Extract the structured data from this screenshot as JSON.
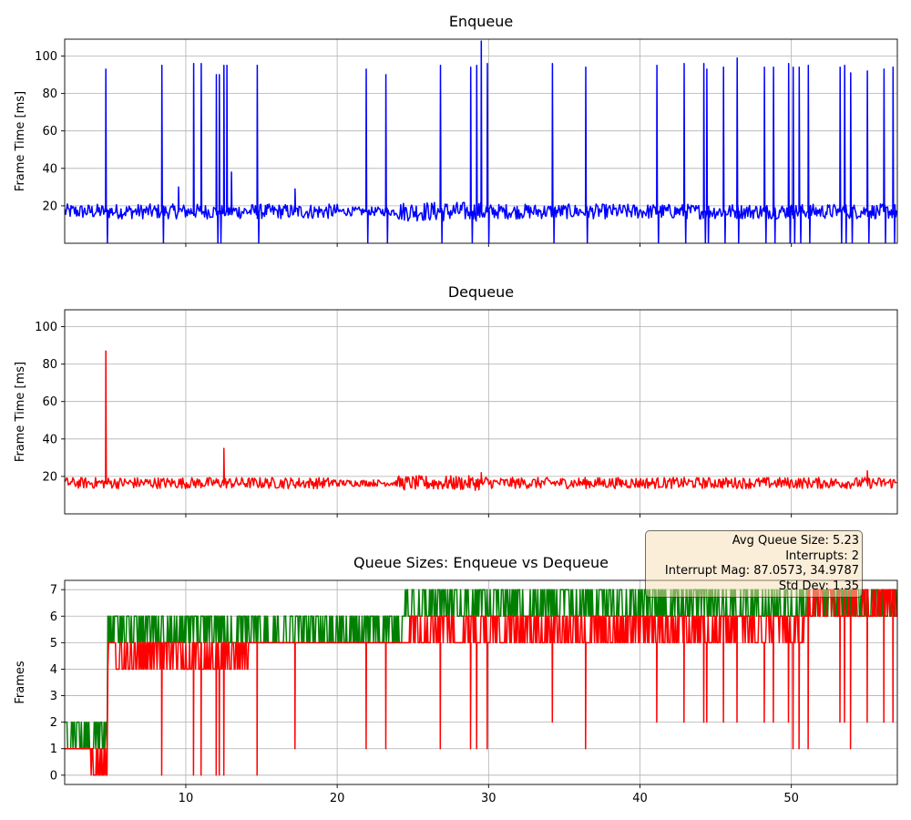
{
  "chart_data": [
    {
      "type": "line",
      "title": "Enqueue",
      "xlabel": "",
      "ylabel": "Frame Time [ms]",
      "xlim": [
        2,
        57
      ],
      "ylim": [
        0,
        109
      ],
      "xticks": [
        10,
        20,
        30,
        40,
        50
      ],
      "yticks": [
        20,
        40,
        60,
        80,
        100
      ],
      "grid": true,
      "series": [
        {
          "color": "#0000ff",
          "baseline": 17,
          "noise_amplitude": 4,
          "spikes": [
            [
              4.7,
              93
            ],
            [
              8.4,
              95
            ],
            [
              9.5,
              30
            ],
            [
              10.5,
              96
            ],
            [
              11.0,
              96
            ],
            [
              12.0,
              90
            ],
            [
              12.2,
              90
            ],
            [
              12.5,
              95
            ],
            [
              12.7,
              95
            ],
            [
              13.0,
              38
            ],
            [
              14.7,
              95
            ],
            [
              17.2,
              29
            ],
            [
              21.9,
              93
            ],
            [
              23.2,
              90
            ],
            [
              26.8,
              95
            ],
            [
              28.8,
              94
            ],
            [
              29.2,
              95
            ],
            [
              29.5,
              108
            ],
            [
              29.9,
              96
            ],
            [
              34.2,
              96
            ],
            [
              36.4,
              94
            ],
            [
              41.1,
              95
            ],
            [
              42.9,
              96
            ],
            [
              44.2,
              96
            ],
            [
              44.4,
              93
            ],
            [
              45.5,
              94
            ],
            [
              46.4,
              99
            ],
            [
              48.2,
              94
            ],
            [
              48.8,
              94
            ],
            [
              49.8,
              96
            ],
            [
              50.1,
              94
            ],
            [
              50.5,
              94
            ],
            [
              51.1,
              95
            ],
            [
              53.2,
              94
            ],
            [
              53.5,
              95
            ],
            [
              53.9,
              91
            ],
            [
              55.0,
              92
            ],
            [
              56.1,
              93
            ],
            [
              56.7,
              94
            ]
          ],
          "drops": [
            4.7,
            8.4,
            12.0,
            12.2,
            14.7,
            21.9,
            23.2,
            26.8,
            28.8,
            29.9,
            34.2,
            36.4,
            41.1,
            42.9,
            44.2,
            44.4,
            45.5,
            46.4,
            48.2,
            48.8,
            49.8,
            50.1,
            50.5,
            51.1,
            53.2,
            53.5,
            53.9,
            55.0,
            56.1,
            56.7
          ]
        }
      ]
    },
    {
      "type": "line",
      "title": "Dequeue",
      "xlabel": "",
      "ylabel": "Frame Time [ms]",
      "xlim": [
        2,
        57
      ],
      "ylim": [
        0,
        109
      ],
      "xticks": [
        10,
        20,
        30,
        40,
        50
      ],
      "yticks": [
        20,
        40,
        60,
        80,
        100
      ],
      "grid": true,
      "series": [
        {
          "color": "#ff0000",
          "baseline": 16.5,
          "noise_amplitude": 3,
          "spikes": [
            [
              4.7,
              87
            ],
            [
              12.5,
              35
            ],
            [
              29.5,
              22
            ],
            [
              55.0,
              23
            ]
          ]
        }
      ]
    },
    {
      "type": "line",
      "title": "Queue Sizes: Enqueue vs Dequeue",
      "xlabel": "",
      "ylabel": "Frames",
      "xlim": [
        2,
        57
      ],
      "ylim": [
        -0.35,
        7.35
      ],
      "xticks": [
        10,
        20,
        30,
        40,
        50
      ],
      "yticks": [
        0,
        1,
        2,
        3,
        4,
        5,
        6,
        7
      ],
      "grid": true,
      "series": [
        {
          "color": "#008000",
          "steps": [
            [
              2.0,
              1.5,
              2,
              1
            ],
            [
              4.8,
              5.5,
              6,
              5
            ],
            [
              24.5,
              6.5,
              7,
              6
            ],
            [
              57.0,
              6.5,
              7,
              6
            ]
          ]
        },
        {
          "color": "#ff0000",
          "steps": [
            [
              2.0,
              1,
              1,
              1
            ],
            [
              3.7,
              0.5,
              1,
              0
            ],
            [
              4.8,
              4.5,
              5,
              4
            ],
            [
              14.5,
              5,
              5,
              5
            ],
            [
              24.5,
              5.5,
              6,
              5
            ],
            [
              51.0,
              6.5,
              7,
              6
            ],
            [
              57.0,
              6.5,
              7,
              6
            ]
          ],
          "drops": [
            8.4,
            10.5,
            11.0,
            12.0,
            12.2,
            12.5,
            14.7,
            17.2,
            21.9,
            23.2,
            26.8,
            28.8,
            29.2,
            29.9,
            34.2,
            36.4,
            41.1,
            42.9,
            44.2,
            44.4,
            45.5,
            46.4,
            48.2,
            48.8,
            49.8,
            50.1,
            50.5,
            51.1,
            53.2,
            53.5,
            53.9,
            55.0,
            56.1,
            56.7
          ]
        }
      ],
      "annotation": {
        "avg_queue_size": "Avg Queue Size: 5.23",
        "interrupts": "Interrupts: 2",
        "interrupt_mag": "Interrupt Mag: 87.0573, 34.9787",
        "std_dev": "Std Dev: 1.35"
      }
    }
  ]
}
